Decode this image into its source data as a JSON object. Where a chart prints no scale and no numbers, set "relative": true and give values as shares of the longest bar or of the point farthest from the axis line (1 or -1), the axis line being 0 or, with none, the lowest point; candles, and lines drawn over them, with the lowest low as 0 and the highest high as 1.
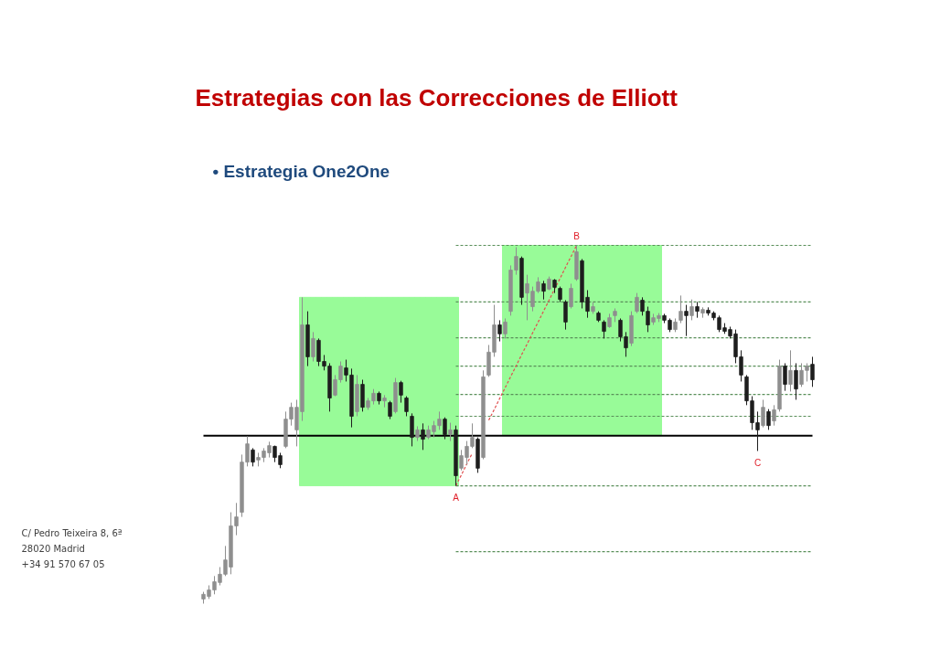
{
  "chart_data": {
    "type": "candlestick",
    "title": "Estrategias con las Correcciones de Elliott",
    "subtitle": "• Estrategia One2One",
    "relative": true,
    "tick_labels": false,
    "categories": [
      null,
      null,
      null,
      null,
      null,
      null,
      null,
      null,
      null,
      null,
      null,
      null,
      null,
      null,
      null,
      null,
      null,
      null,
      null,
      null,
      null,
      null,
      null,
      null,
      null,
      null,
      null,
      null,
      null,
      null,
      null,
      null,
      null,
      null,
      null,
      null,
      null,
      null,
      null,
      null,
      null,
      null,
      null,
      null,
      null,
      null,
      null,
      null,
      null,
      null,
      null,
      null,
      null,
      null,
      null,
      null,
      null,
      null,
      null,
      null,
      null,
      null,
      null,
      null,
      null,
      null,
      null,
      null,
      null,
      null,
      null,
      null,
      null,
      null,
      null,
      null,
      null,
      null,
      null,
      null,
      null,
      null,
      null,
      null,
      null,
      null,
      null,
      null,
      null,
      null,
      null,
      null,
      null,
      null,
      null,
      null,
      null,
      null,
      null,
      null,
      null,
      null,
      null,
      null,
      null,
      null,
      null,
      null,
      null,
      null,
      null,
      null
    ],
    "ohlc": [
      [
        0.013,
        0.033,
        0,
        0.026
      ],
      [
        0.02,
        0.051,
        0.013,
        0.038
      ],
      [
        0.038,
        0.077,
        0.026,
        0.061
      ],
      [
        0.059,
        0.102,
        0.051,
        0.082
      ],
      [
        0.082,
        0.161,
        0.077,
        0.122
      ],
      [
        0.102,
        0.255,
        0.082,
        0.217
      ],
      [
        0.217,
        0.281,
        0.191,
        0.242
      ],
      [
        0.255,
        0.416,
        0.242,
        0.395
      ],
      [
        0.395,
        0.467,
        0.383,
        0.446
      ],
      [
        0.429,
        0.434,
        0.383,
        0.395
      ],
      [
        0.401,
        0.421,
        0.383,
        0.408
      ],
      [
        0.408,
        0.434,
        0.395,
        0.426
      ],
      [
        0.421,
        0.452,
        0.408,
        0.441
      ],
      [
        0.439,
        0.441,
        0.395,
        0.408
      ],
      [
        0.413,
        0.421,
        0.378,
        0.388
      ],
      [
        0.439,
        0.536,
        0.434,
        0.515
      ],
      [
        0.515,
        0.561,
        0.497,
        0.548
      ],
      [
        0.485,
        0.569,
        0.439,
        0.548
      ],
      [
        0.536,
        0.855,
        0.51,
        0.778
      ],
      [
        0.778,
        0.816,
        0.663,
        0.689
      ],
      [
        0.689,
        0.758,
        0.676,
        0.74
      ],
      [
        0.735,
        0.74,
        0.663,
        0.676
      ],
      [
        0.676,
        0.694,
        0.651,
        0.663
      ],
      [
        0.663,
        0.671,
        0.536,
        0.574
      ],
      [
        0.582,
        0.638,
        0.579,
        0.625
      ],
      [
        0.625,
        0.676,
        0.617,
        0.663
      ],
      [
        0.658,
        0.681,
        0.62,
        0.638
      ],
      [
        0.638,
        0.656,
        0.492,
        0.523
      ],
      [
        0.536,
        0.638,
        0.523,
        0.612
      ],
      [
        0.612,
        0.625,
        0.536,
        0.548
      ],
      [
        0.548,
        0.574,
        0.541,
        0.566
      ],
      [
        0.566,
        0.599,
        0.556,
        0.587
      ],
      [
        0.587,
        0.592,
        0.556,
        0.566
      ],
      [
        0.566,
        0.582,
        0.548,
        0.574
      ],
      [
        0.561,
        0.566,
        0.515,
        0.523
      ],
      [
        0.536,
        0.63,
        0.531,
        0.617
      ],
      [
        0.617,
        0.622,
        0.561,
        0.582
      ],
      [
        0.574,
        0.579,
        0.523,
        0.536
      ],
      [
        0.523,
        0.531,
        0.439,
        0.464
      ],
      [
        0.464,
        0.495,
        0.454,
        0.485
      ],
      [
        0.485,
        0.503,
        0.429,
        0.459
      ],
      [
        0.464,
        0.497,
        0.459,
        0.485
      ],
      [
        0.48,
        0.51,
        0.464,
        0.497
      ],
      [
        0.497,
        0.536,
        0.485,
        0.515
      ],
      [
        0.515,
        0.52,
        0.459,
        0.472
      ],
      [
        0.472,
        0.505,
        0.454,
        0.485
      ],
      [
        0.485,
        0.497,
        0.329,
        0.357
      ],
      [
        0.378,
        0.429,
        0.372,
        0.413
      ],
      [
        0.408,
        0.454,
        0.388,
        0.439
      ],
      [
        0.439,
        0.503,
        0.434,
        0.464
      ],
      [
        0.459,
        0.464,
        0.365,
        0.378
      ],
      [
        0.408,
        0.651,
        0.403,
        0.633
      ],
      [
        0.638,
        0.722,
        0.633,
        0.702
      ],
      [
        0.702,
        0.834,
        0.689,
        0.778
      ],
      [
        0.778,
        0.791,
        0.732,
        0.753
      ],
      [
        0.753,
        0.796,
        0.74,
        0.786
      ],
      [
        0.816,
        0.944,
        0.804,
        0.931
      ],
      [
        0.931,
        0.995,
        0.918,
        0.969
      ],
      [
        0.964,
        0.969,
        0.834,
        0.855
      ],
      [
        0.867,
        0.918,
        0.791,
        0.893
      ],
      [
        0.829,
        0.885,
        0.816,
        0.872
      ],
      [
        0.872,
        0.911,
        0.867,
        0.898
      ],
      [
        0.893,
        0.901,
        0.849,
        0.872
      ],
      [
        0.878,
        0.913,
        0.875,
        0.906
      ],
      [
        0.903,
        0.906,
        0.867,
        0.883
      ],
      [
        0.88,
        0.885,
        0.842,
        0.849
      ],
      [
        0.842,
        0.847,
        0.765,
        0.786
      ],
      [
        0.829,
        0.893,
        0.824,
        0.88
      ],
      [
        0.906,
        1,
        0.901,
        0.982
      ],
      [
        0.957,
        0.962,
        0.824,
        0.842
      ],
      [
        0.855,
        0.875,
        0.798,
        0.816
      ],
      [
        0.816,
        0.842,
        0.809,
        0.829
      ],
      [
        0.811,
        0.816,
        0.786,
        0.791
      ],
      [
        0.786,
        0.791,
        0.74,
        0.76
      ],
      [
        0.773,
        0.809,
        0.77,
        0.798
      ],
      [
        0.804,
        0.824,
        0.786,
        0.816
      ],
      [
        0.791,
        0.796,
        0.732,
        0.745
      ],
      [
        0.745,
        0.758,
        0.689,
        0.714
      ],
      [
        0.727,
        0.816,
        0.719,
        0.804
      ],
      [
        0.816,
        0.867,
        0.811,
        0.855
      ],
      [
        0.847,
        0.855,
        0.804,
        0.816
      ],
      [
        0.816,
        0.829,
        0.758,
        0.778
      ],
      [
        0.786,
        0.809,
        0.778,
        0.798
      ],
      [
        0.796,
        0.811,
        0.786,
        0.804
      ],
      [
        0.804,
        0.809,
        0.783,
        0.791
      ],
      [
        0.791,
        0.796,
        0.758,
        0.765
      ],
      [
        0.765,
        0.796,
        0.758,
        0.786
      ],
      [
        0.791,
        0.86,
        0.783,
        0.816
      ],
      [
        0.816,
        0.834,
        0.747,
        0.804
      ],
      [
        0.804,
        0.849,
        0.791,
        0.829
      ],
      [
        0.829,
        0.842,
        0.798,
        0.816
      ],
      [
        0.811,
        0.827,
        0.798,
        0.821
      ],
      [
        0.819,
        0.827,
        0.804,
        0.811
      ],
      [
        0.811,
        0.816,
        0.791,
        0.798
      ],
      [
        0.798,
        0.804,
        0.758,
        0.765
      ],
      [
        0.77,
        0.783,
        0.753,
        0.76
      ],
      [
        0.765,
        0.773,
        0.74,
        0.747
      ],
      [
        0.753,
        0.765,
        0.671,
        0.689
      ],
      [
        0.689,
        0.707,
        0.62,
        0.638
      ],
      [
        0.633,
        0.638,
        0.554,
        0.566
      ],
      [
        0.566,
        0.579,
        0.485,
        0.505
      ],
      [
        0.505,
        0.536,
        0.426,
        0.485
      ],
      [
        0.497,
        0.569,
        0.492,
        0.548
      ],
      [
        0.536,
        0.543,
        0.485,
        0.497
      ],
      [
        0.51,
        0.554,
        0.497,
        0.541
      ],
      [
        0.543,
        0.681,
        0.536,
        0.663
      ],
      [
        0.663,
        0.671,
        0.594,
        0.612
      ],
      [
        0.612,
        0.707,
        0.592,
        0.651
      ],
      [
        0.651,
        0.671,
        0.569,
        0.599
      ],
      [
        0.612,
        0.671,
        0.605,
        0.651
      ],
      [
        0.651,
        0.671,
        0.62,
        0.663
      ],
      [
        0.668,
        0.689,
        0.605,
        0.625
      ]
    ],
    "series": [
      {
        "type": "bar",
        "color": "#98fb98",
        "values": [
          null,
          null,
          null,
          null,
          null,
          null,
          null,
          null,
          null,
          null,
          null,
          null,
          null,
          null,
          null,
          null,
          null,
          null,
          0.526,
          0.526,
          0.526,
          0.526,
          0.526,
          0.526,
          0.526,
          0.526,
          0.526,
          0.526,
          0.526,
          0.526,
          0.526,
          0.526,
          0.526,
          0.526,
          0.526,
          0.526,
          0.526,
          0.526,
          0.526,
          0.526,
          0.526,
          0.526,
          0.526,
          0.526,
          0.526,
          0.526,
          0.526,
          null,
          null,
          null,
          null,
          null,
          null,
          null,
          null,
          null,
          null,
          null,
          null,
          null,
          null,
          null,
          null,
          null,
          null,
          null,
          null,
          null,
          null,
          null,
          null,
          null,
          null,
          null,
          null,
          null,
          null,
          null,
          null,
          null,
          null,
          null,
          null,
          null,
          null,
          null,
          null,
          null,
          null,
          null,
          null,
          null,
          null,
          null,
          null,
          null,
          null,
          null,
          null,
          null,
          null,
          null,
          null,
          null,
          null,
          null,
          null,
          null,
          null,
          null,
          null,
          null
        ],
        "base": [
          null,
          null,
          null,
          null,
          null,
          null,
          null,
          null,
          null,
          null,
          null,
          null,
          null,
          null,
          null,
          null,
          null,
          null,
          0.329,
          0.329,
          0.329,
          0.329,
          0.329,
          0.329,
          0.329,
          0.329,
          0.329,
          0.329,
          0.329,
          0.329,
          0.329,
          0.329,
          0.329,
          0.329,
          0.329,
          0.329,
          0.329,
          0.329,
          0.329,
          0.329,
          0.329,
          0.329,
          0.329,
          0.329,
          0.329,
          0.329,
          0.329,
          null,
          null,
          null,
          null,
          null,
          null,
          null,
          null,
          null,
          null,
          null,
          null,
          null,
          null,
          null,
          null,
          null,
          null,
          null,
          null,
          null,
          null,
          null,
          null,
          null,
          null,
          null,
          null,
          null,
          null,
          null,
          null,
          null,
          null,
          null,
          null,
          null,
          null,
          null,
          null,
          null,
          null,
          null,
          null,
          null,
          null,
          null,
          null,
          null,
          null,
          null,
          null,
          null,
          null,
          null,
          null,
          null,
          null,
          null,
          null,
          null,
          null,
          null,
          null,
          null
        ]
      },
      {
        "type": "bar",
        "color": "#98fb98",
        "values": [
          null,
          null,
          null,
          null,
          null,
          null,
          null,
          null,
          null,
          null,
          null,
          null,
          null,
          null,
          null,
          null,
          null,
          null,
          null,
          null,
          null,
          null,
          null,
          null,
          null,
          null,
          null,
          null,
          null,
          null,
          null,
          null,
          null,
          null,
          null,
          null,
          null,
          null,
          null,
          null,
          null,
          null,
          null,
          null,
          null,
          null,
          null,
          null,
          null,
          null,
          null,
          null,
          null,
          null,
          null,
          0.531,
          0.531,
          0.531,
          0.531,
          0.531,
          0.531,
          0.531,
          0.531,
          0.531,
          0.531,
          0.531,
          0.531,
          0.531,
          0.531,
          0.531,
          0.531,
          0.531,
          0.531,
          0.531,
          0.531,
          0.531,
          0.531,
          0.531,
          0.531,
          0.531,
          0.531,
          0.531,
          0.531,
          0.531,
          null,
          null,
          null,
          null,
          null,
          null,
          null,
          null,
          null,
          null,
          null,
          null,
          null,
          null,
          null,
          null,
          null,
          null,
          null,
          null,
          null,
          null,
          null,
          null,
          null,
          null,
          null,
          null
        ],
        "base": [
          null,
          null,
          null,
          null,
          null,
          null,
          null,
          null,
          null,
          null,
          null,
          null,
          null,
          null,
          null,
          null,
          null,
          null,
          null,
          null,
          null,
          null,
          null,
          null,
          null,
          null,
          null,
          null,
          null,
          null,
          null,
          null,
          null,
          null,
          null,
          null,
          null,
          null,
          null,
          null,
          null,
          null,
          null,
          null,
          null,
          null,
          null,
          null,
          null,
          null,
          null,
          null,
          null,
          null,
          null,
          0.469,
          0.469,
          0.469,
          0.469,
          0.469,
          0.469,
          0.469,
          0.469,
          0.469,
          0.469,
          0.469,
          0.469,
          0.469,
          0.469,
          0.469,
          0.469,
          0.469,
          0.469,
          0.469,
          0.469,
          0.469,
          0.469,
          0.469,
          0.469,
          0.469,
          0.469,
          0.469,
          0.469,
          0.469,
          null,
          null,
          null,
          null,
          null,
          null,
          null,
          null,
          null,
          null,
          null,
          null,
          null,
          null,
          null,
          null,
          null,
          null,
          null,
          null,
          null,
          null,
          null,
          null,
          null,
          null,
          null,
          null
        ]
      },
      {
        "type": "line",
        "color": "#5a8f5a",
        "line_style": "dotted",
        "values": [
          null,
          null,
          null,
          null,
          null,
          null,
          null,
          null,
          null,
          null,
          null,
          null,
          null,
          null,
          null,
          null,
          null,
          null,
          null,
          null,
          null,
          null,
          null,
          null,
          null,
          null,
          null,
          null,
          null,
          null,
          null,
          null,
          null,
          null,
          null,
          null,
          null,
          null,
          null,
          null,
          null,
          null,
          null,
          null,
          null,
          null,
          1,
          1,
          1,
          1,
          1,
          1,
          1,
          1,
          1,
          1,
          1,
          1,
          1,
          1,
          1,
          1,
          1,
          1,
          1,
          1,
          1,
          1,
          1,
          1,
          1,
          1,
          1,
          1,
          1,
          1,
          1,
          1,
          1,
          1,
          1,
          1,
          1,
          1,
          1,
          1,
          1,
          1,
          1,
          1,
          1,
          1,
          1,
          1,
          1,
          1,
          1,
          1,
          1,
          1,
          1,
          1,
          1,
          1,
          1,
          1,
          1,
          1,
          1,
          1,
          1,
          1
        ]
      },
      {
        "type": "line",
        "color": "#5a8f5a",
        "line_style": "dotted",
        "values": [
          null,
          null,
          null,
          null,
          null,
          null,
          null,
          null,
          null,
          null,
          null,
          null,
          null,
          null,
          null,
          null,
          null,
          null,
          null,
          null,
          null,
          null,
          null,
          null,
          null,
          null,
          null,
          null,
          null,
          null,
          null,
          null,
          null,
          null,
          null,
          null,
          null,
          null,
          null,
          null,
          null,
          null,
          null,
          null,
          null,
          null,
          0.842,
          0.842,
          0.842,
          0.842,
          0.842,
          0.842,
          0.842,
          0.842,
          0.842,
          0.842,
          0.842,
          0.842,
          0.842,
          0.842,
          0.842,
          0.842,
          0.842,
          0.842,
          0.842,
          0.842,
          0.842,
          0.842,
          0.842,
          0.842,
          0.842,
          0.842,
          0.842,
          0.842,
          0.842,
          0.842,
          0.842,
          0.842,
          0.842,
          0.842,
          0.842,
          0.842,
          0.842,
          0.842,
          0.842,
          0.842,
          0.842,
          0.842,
          0.842,
          0.842,
          0.842,
          0.842,
          0.842,
          0.842,
          0.842,
          0.842,
          0.842,
          0.842,
          0.842,
          0.842,
          0.842,
          0.842,
          0.842,
          0.842,
          0.842,
          0.842,
          0.842,
          0.842,
          0.842,
          0.842,
          0.842,
          0.842
        ]
      },
      {
        "type": "line",
        "color": "#5a8f5a",
        "line_style": "dotted",
        "values": [
          null,
          null,
          null,
          null,
          null,
          null,
          null,
          null,
          null,
          null,
          null,
          null,
          null,
          null,
          null,
          null,
          null,
          null,
          null,
          null,
          null,
          null,
          null,
          null,
          null,
          null,
          null,
          null,
          null,
          null,
          null,
          null,
          null,
          null,
          null,
          null,
          null,
          null,
          null,
          null,
          null,
          null,
          null,
          null,
          null,
          null,
          0.742,
          0.742,
          0.742,
          0.742,
          0.742,
          0.742,
          0.742,
          0.742,
          0.742,
          0.742,
          0.742,
          0.742,
          0.742,
          0.742,
          0.742,
          0.742,
          0.742,
          0.742,
          0.742,
          0.742,
          0.742,
          0.742,
          0.742,
          0.742,
          0.742,
          0.742,
          0.742,
          0.742,
          0.742,
          0.742,
          0.742,
          0.742,
          0.742,
          0.742,
          0.742,
          0.742,
          0.742,
          0.742,
          0.742,
          0.742,
          0.742,
          0.742,
          0.742,
          0.742,
          0.742,
          0.742,
          0.742,
          0.742,
          0.742,
          0.742,
          0.742,
          0.742,
          0.742,
          0.742,
          0.742,
          0.742,
          0.742,
          0.742,
          0.742,
          0.742,
          0.742,
          0.742,
          0.742,
          0.742,
          0.742,
          0.742
        ]
      },
      {
        "type": "line",
        "color": "#5a8f5a",
        "line_style": "dotted",
        "values": [
          null,
          null,
          null,
          null,
          null,
          null,
          null,
          null,
          null,
          null,
          null,
          null,
          null,
          null,
          null,
          null,
          null,
          null,
          null,
          null,
          null,
          null,
          null,
          null,
          null,
          null,
          null,
          null,
          null,
          null,
          null,
          null,
          null,
          null,
          null,
          null,
          null,
          null,
          null,
          null,
          null,
          null,
          null,
          null,
          null,
          null,
          0.663,
          0.663,
          0.663,
          0.663,
          0.663,
          0.663,
          0.663,
          0.663,
          0.663,
          0.663,
          0.663,
          0.663,
          0.663,
          0.663,
          0.663,
          0.663,
          0.663,
          0.663,
          0.663,
          0.663,
          0.663,
          0.663,
          0.663,
          0.663,
          0.663,
          0.663,
          0.663,
          0.663,
          0.663,
          0.663,
          0.663,
          0.663,
          0.663,
          0.663,
          0.663,
          0.663,
          0.663,
          0.663,
          0.663,
          0.663,
          0.663,
          0.663,
          0.663,
          0.663,
          0.663,
          0.663,
          0.663,
          0.663,
          0.663,
          0.663,
          0.663,
          0.663,
          0.663,
          0.663,
          0.663,
          0.663,
          0.663,
          0.663,
          0.663,
          0.663,
          0.663,
          0.663,
          0.663,
          0.663,
          0.663,
          0.663
        ]
      },
      {
        "type": "line",
        "color": "#5a8f5a",
        "line_style": "dotted",
        "values": [
          null,
          null,
          null,
          null,
          null,
          null,
          null,
          null,
          null,
          null,
          null,
          null,
          null,
          null,
          null,
          null,
          null,
          null,
          null,
          null,
          null,
          null,
          null,
          null,
          null,
          null,
          null,
          null,
          null,
          null,
          null,
          null,
          null,
          null,
          null,
          null,
          null,
          null,
          null,
          null,
          null,
          null,
          null,
          null,
          null,
          null,
          0.584,
          0.584,
          0.584,
          0.584,
          0.584,
          0.584,
          0.584,
          0.584,
          0.584,
          0.584,
          0.584,
          0.584,
          0.584,
          0.584,
          0.584,
          0.584,
          0.584,
          0.584,
          0.584,
          0.584,
          0.584,
          0.584,
          0.584,
          0.584,
          0.584,
          0.584,
          0.584,
          0.584,
          0.584,
          0.584,
          0.584,
          0.584,
          0.584,
          0.584,
          0.584,
          0.584,
          0.584,
          0.584,
          0.584,
          0.584,
          0.584,
          0.584,
          0.584,
          0.584,
          0.584,
          0.584,
          0.584,
          0.584,
          0.584,
          0.584,
          0.584,
          0.584,
          0.584,
          0.584,
          0.584,
          0.584,
          0.584,
          0.584,
          0.584,
          0.584,
          0.584,
          0.584,
          0.584,
          0.584,
          0.584,
          0.584
        ]
      },
      {
        "type": "line",
        "color": "#5a8f5a",
        "line_style": "dotted",
        "values": [
          null,
          null,
          null,
          null,
          null,
          null,
          null,
          null,
          null,
          null,
          null,
          null,
          null,
          null,
          null,
          null,
          null,
          null,
          null,
          null,
          null,
          null,
          null,
          null,
          null,
          null,
          null,
          null,
          null,
          null,
          null,
          null,
          null,
          null,
          null,
          null,
          null,
          null,
          null,
          null,
          null,
          null,
          null,
          null,
          null,
          null,
          0.523,
          0.523,
          0.523,
          0.523,
          0.523,
          0.523,
          0.523,
          0.523,
          0.523,
          0.523,
          0.523,
          0.523,
          0.523,
          0.523,
          0.523,
          0.523,
          0.523,
          0.523,
          0.523,
          0.523,
          0.523,
          0.523,
          0.523,
          0.523,
          0.523,
          0.523,
          0.523,
          0.523,
          0.523,
          0.523,
          0.523,
          0.523,
          0.523,
          0.523,
          0.523,
          0.523,
          0.523,
          0.523,
          0.523,
          0.523,
          0.523,
          0.523,
          0.523,
          0.523,
          0.523,
          0.523,
          0.523,
          0.523,
          0.523,
          0.523,
          0.523,
          0.523,
          0.523,
          0.523,
          0.523,
          0.523,
          0.523,
          0.523,
          0.523,
          0.523,
          0.523,
          0.523,
          0.523,
          0.523,
          0.523,
          0.523
        ]
      },
      {
        "type": "line",
        "color": "#5a8f5a",
        "line_style": "dotted",
        "values": [
          null,
          null,
          null,
          null,
          null,
          null,
          null,
          null,
          null,
          null,
          null,
          null,
          null,
          null,
          null,
          null,
          null,
          null,
          null,
          null,
          null,
          null,
          null,
          null,
          null,
          null,
          null,
          null,
          null,
          null,
          null,
          null,
          null,
          null,
          null,
          null,
          null,
          null,
          null,
          null,
          null,
          null,
          null,
          null,
          null,
          null,
          0.329,
          0.329,
          0.329,
          0.329,
          0.329,
          0.329,
          0.329,
          0.329,
          0.329,
          0.329,
          0.329,
          0.329,
          0.329,
          0.329,
          0.329,
          0.329,
          0.329,
          0.329,
          0.329,
          0.329,
          0.329,
          0.329,
          0.329,
          0.329,
          0.329,
          0.329,
          0.329,
          0.329,
          0.329,
          0.329,
          0.329,
          0.329,
          0.329,
          0.329,
          0.329,
          0.329,
          0.329,
          0.329,
          0.329,
          0.329,
          0.329,
          0.329,
          0.329,
          0.329,
          0.329,
          0.329,
          0.329,
          0.329,
          0.329,
          0.329,
          0.329,
          0.329,
          0.329,
          0.329,
          0.329,
          0.329,
          0.329,
          0.329,
          0.329,
          0.329,
          0.329,
          0.329,
          0.329,
          0.329,
          0.329,
          0.329
        ]
      },
      {
        "type": "line",
        "color": "#5a8f5a",
        "line_style": "dotted",
        "values": [
          null,
          null,
          null,
          null,
          null,
          null,
          null,
          null,
          null,
          null,
          null,
          null,
          null,
          null,
          null,
          null,
          null,
          null,
          null,
          null,
          null,
          null,
          null,
          null,
          null,
          null,
          null,
          null,
          null,
          null,
          null,
          null,
          null,
          null,
          null,
          null,
          null,
          null,
          null,
          null,
          null,
          null,
          null,
          null,
          null,
          null,
          0.145,
          0.145,
          0.145,
          0.145,
          0.145,
          0.145,
          0.145,
          0.145,
          0.145,
          0.145,
          0.145,
          0.145,
          0.145,
          0.145,
          0.145,
          0.145,
          0.145,
          0.145,
          0.145,
          0.145,
          0.145,
          0.145,
          0.145,
          0.145,
          0.145,
          0.145,
          0.145,
          0.145,
          0.145,
          0.145,
          0.145,
          0.145,
          0.145,
          0.145,
          0.145,
          0.145,
          0.145,
          0.145,
          0.145,
          0.145,
          0.145,
          0.145,
          0.145,
          0.145,
          0.145,
          0.145,
          0.145,
          0.145,
          0.145,
          0.145,
          0.145,
          0.145,
          0.145,
          0.145,
          0.145,
          0.145,
          0.145,
          0.145,
          0.145,
          0.145,
          0.145,
          0.145,
          0.145,
          0.145,
          0.145,
          0.145
        ]
      },
      {
        "type": "line",
        "color": "#e05050",
        "line_style": "dotted",
        "values": [
          null,
          null,
          null,
          null,
          null,
          null,
          null,
          null,
          null,
          null,
          null,
          null,
          null,
          null,
          null,
          null,
          null,
          null,
          null,
          null,
          null,
          null,
          null,
          null,
          null,
          null,
          null,
          null,
          null,
          null,
          null,
          null,
          null,
          null,
          null,
          null,
          null,
          null,
          null,
          null,
          null,
          null,
          null,
          null,
          null,
          null,
          0.329,
          0.359,
          0.39,
          0.42,
          null,
          null,
          0.512,
          0.542,
          0.573,
          0.603,
          0.634,
          0.664,
          0.695,
          0.725,
          0.756,
          0.786,
          0.817,
          0.847,
          0.878,
          0.908,
          0.939,
          0.969,
          1,
          null,
          null,
          null,
          null,
          null,
          null,
          null,
          null,
          null,
          null,
          null,
          null,
          null,
          null,
          null,
          null,
          null,
          null,
          null,
          null,
          null,
          null,
          null,
          null,
          null,
          null,
          null,
          null,
          null,
          null,
          null,
          null,
          null,
          null,
          null,
          null,
          null,
          null,
          null,
          null,
          null,
          null,
          null
        ]
      }
    ],
    "ref_lines": [
      {
        "axis": "y",
        "value": 0.469,
        "color": "#000000"
      }
    ],
    "annotations": [
      {
        "text": "A",
        "y": 0.329
      },
      {
        "text": "B",
        "y": 1
      },
      {
        "text": "C",
        "y": 0.426
      },
      "C/ Pedro Teixeira 8, 6ª",
      "28020 Madrid",
      "+34 91 570 67 05"
    ]
  }
}
